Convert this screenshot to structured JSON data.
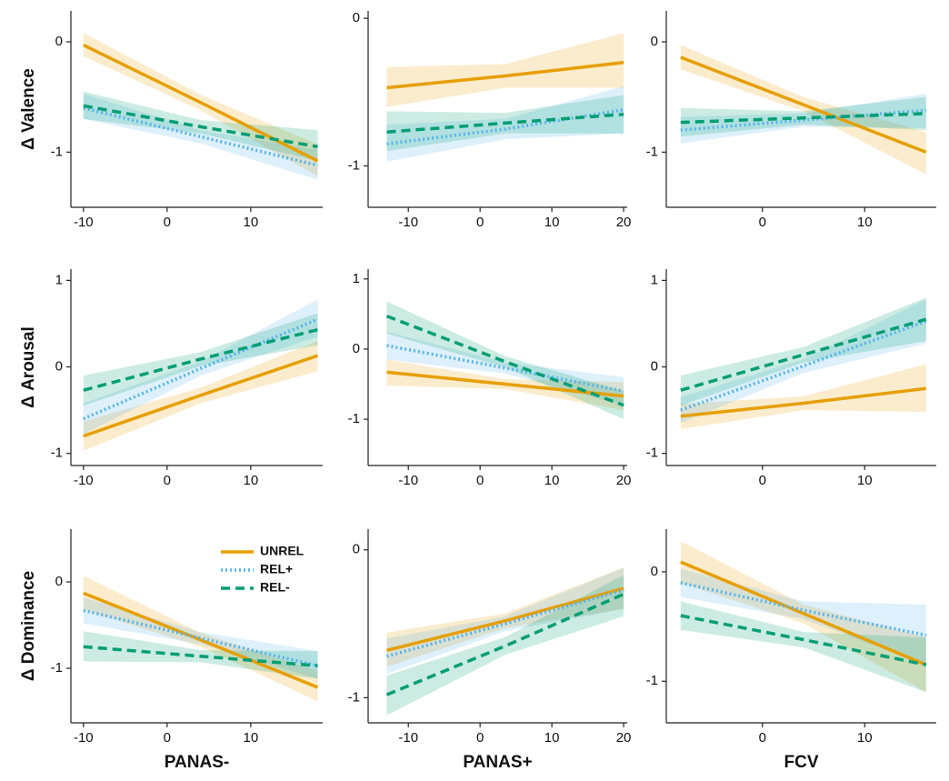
{
  "chart_data": [
    {
      "type": "line",
      "ylabel": "Δ Valence",
      "x": [
        -10,
        4,
        18
      ],
      "xlim": [
        -11.5,
        18.6
      ],
      "xticks": [
        -10,
        0,
        10
      ],
      "ylim": [
        -1.5,
        0.28
      ],
      "yticks": [
        -1,
        0
      ],
      "series": [
        {
          "color": "#e69f00",
          "dash": "solid",
          "values": [
            -0.03,
            -0.55,
            -1.08
          ],
          "lower": [
            -0.13,
            -0.62,
            -1.22
          ],
          "upper": [
            0.08,
            -0.48,
            -0.93
          ]
        },
        {
          "color": "#56b4e9",
          "dash": "dotted",
          "values": [
            -0.6,
            -0.86,
            -1.12
          ],
          "lower": [
            -0.7,
            -0.92,
            -1.25
          ],
          "upper": [
            -0.47,
            -0.8,
            -0.98
          ]
        },
        {
          "color": "#009e73",
          "dash": "dashed",
          "values": [
            -0.58,
            -0.77,
            -0.95
          ],
          "lower": [
            -0.7,
            -0.83,
            -1.08
          ],
          "upper": [
            -0.45,
            -0.71,
            -0.8
          ]
        }
      ]
    },
    {
      "type": "line",
      "x": [
        -13,
        3.5,
        20
      ],
      "xlim": [
        -15.6,
        20.5
      ],
      "xticks": [
        -10,
        0,
        10,
        20
      ],
      "ylim": [
        -1.28,
        0.05
      ],
      "yticks": [
        -1,
        0
      ],
      "series": [
        {
          "color": "#e69f00",
          "dash": "solid",
          "values": [
            -0.47,
            -0.39,
            -0.3
          ],
          "lower": [
            -0.6,
            -0.47,
            -0.47
          ],
          "upper": [
            -0.33,
            -0.31,
            -0.1
          ]
        },
        {
          "color": "#56b4e9",
          "dash": "dotted",
          "values": [
            -0.85,
            -0.75,
            -0.62
          ],
          "lower": [
            -0.97,
            -0.82,
            -0.78
          ],
          "upper": [
            -0.72,
            -0.68,
            -0.46
          ]
        },
        {
          "color": "#009e73",
          "dash": "dashed",
          "values": [
            -0.77,
            -0.71,
            -0.65
          ],
          "lower": [
            -0.9,
            -0.78,
            -0.78
          ],
          "upper": [
            -0.63,
            -0.64,
            -0.52
          ]
        }
      ]
    },
    {
      "type": "line",
      "x": [
        -8,
        4,
        16
      ],
      "xlim": [
        -9.4,
        17
      ],
      "xticks": [
        0,
        10
      ],
      "ylim": [
        -1.5,
        0.28
      ],
      "yticks": [
        -1,
        0
      ],
      "series": [
        {
          "color": "#e69f00",
          "dash": "solid",
          "values": [
            -0.14,
            -0.57,
            -1.0
          ],
          "lower": [
            -0.25,
            -0.63,
            -1.2
          ],
          "upper": [
            -0.03,
            -0.5,
            -0.82
          ]
        },
        {
          "color": "#56b4e9",
          "dash": "dotted",
          "values": [
            -0.8,
            -0.71,
            -0.62
          ],
          "lower": [
            -0.92,
            -0.77,
            -0.78
          ],
          "upper": [
            -0.68,
            -0.65,
            -0.47
          ]
        },
        {
          "color": "#009e73",
          "dash": "dashed",
          "values": [
            -0.73,
            -0.69,
            -0.65
          ],
          "lower": [
            -0.86,
            -0.75,
            -0.8
          ],
          "upper": [
            -0.6,
            -0.63,
            -0.5
          ]
        }
      ]
    },
    {
      "type": "line",
      "ylabel": "Δ Arousal",
      "x": [
        -10,
        4,
        18
      ],
      "xlim": [
        -11.5,
        18.6
      ],
      "xticks": [
        -10,
        0,
        10
      ],
      "ylim": [
        -1.14,
        1.13
      ],
      "yticks": [
        -1,
        0,
        1
      ],
      "series": [
        {
          "color": "#e69f00",
          "dash": "solid",
          "values": [
            -0.8,
            -0.33,
            0.13
          ],
          "lower": [
            -0.97,
            -0.42,
            -0.05
          ],
          "upper": [
            -0.63,
            -0.24,
            0.3
          ]
        },
        {
          "color": "#56b4e9",
          "dash": "dotted",
          "values": [
            -0.6,
            -0.02,
            0.55
          ],
          "lower": [
            -0.78,
            -0.1,
            0.35
          ],
          "upper": [
            -0.42,
            0.06,
            0.78
          ]
        },
        {
          "color": "#009e73",
          "dash": "dashed",
          "values": [
            -0.27,
            0.09,
            0.43
          ],
          "lower": [
            -0.45,
            0.01,
            0.25
          ],
          "upper": [
            -0.1,
            0.17,
            0.62
          ]
        }
      ]
    },
    {
      "type": "line",
      "x": [
        -13,
        3.5,
        20
      ],
      "xlim": [
        -15.6,
        20.5
      ],
      "xticks": [
        -10,
        0,
        10,
        20
      ],
      "ylim": [
        -1.66,
        1.14
      ],
      "yticks": [
        -1,
        0,
        1
      ],
      "series": [
        {
          "color": "#e69f00",
          "dash": "solid",
          "values": [
            -0.33,
            -0.5,
            -0.67
          ],
          "lower": [
            -0.52,
            -0.57,
            -0.87
          ],
          "upper": [
            -0.15,
            -0.43,
            -0.47
          ]
        },
        {
          "color": "#56b4e9",
          "dash": "dotted",
          "values": [
            0.05,
            -0.27,
            -0.6
          ],
          "lower": [
            -0.15,
            -0.35,
            -0.8
          ],
          "upper": [
            0.25,
            -0.19,
            -0.4
          ]
        },
        {
          "color": "#009e73",
          "dash": "dashed",
          "values": [
            0.47,
            -0.18,
            -0.8
          ],
          "lower": [
            0.22,
            -0.26,
            -1.0
          ],
          "upper": [
            0.68,
            -0.1,
            -0.6
          ]
        }
      ]
    },
    {
      "type": "line",
      "x": [
        -8,
        4,
        16
      ],
      "xlim": [
        -9.4,
        17
      ],
      "xticks": [
        0,
        10
      ],
      "ylim": [
        -1.14,
        1.13
      ],
      "yticks": [
        -1,
        0,
        1
      ],
      "series": [
        {
          "color": "#e69f00",
          "dash": "solid",
          "values": [
            -0.57,
            -0.42,
            -0.25
          ],
          "lower": [
            -0.72,
            -0.5,
            -0.52
          ],
          "upper": [
            -0.43,
            -0.34,
            0.03
          ]
        },
        {
          "color": "#56b4e9",
          "dash": "dotted",
          "values": [
            -0.5,
            0.01,
            0.53
          ],
          "lower": [
            -0.65,
            -0.07,
            0.27
          ],
          "upper": [
            -0.35,
            0.09,
            0.78
          ]
        },
        {
          "color": "#009e73",
          "dash": "dashed",
          "values": [
            -0.27,
            0.14,
            0.55
          ],
          "lower": [
            -0.45,
            0.05,
            0.3
          ],
          "upper": [
            -0.1,
            0.23,
            0.8
          ]
        }
      ]
    },
    {
      "type": "line",
      "ylabel": "Δ Dominance",
      "xlabel": "PANAS-",
      "legend": "upper right",
      "x": [
        -10,
        4,
        18
      ],
      "xlim": [
        -11.5,
        18.6
      ],
      "xticks": [
        -10,
        0,
        10
      ],
      "ylim": [
        -1.63,
        0.61
      ],
      "yticks": [
        -1,
        0
      ],
      "series": [
        {
          "name": "UNREL",
          "color": "#e69f00",
          "dash": "solid",
          "values": [
            -0.13,
            -0.67,
            -1.22
          ],
          "lower": [
            -0.32,
            -0.75,
            -1.38
          ],
          "upper": [
            0.07,
            -0.59,
            -1.03
          ]
        },
        {
          "name": "REL+",
          "color": "#56b4e9",
          "dash": "dotted",
          "values": [
            -0.33,
            -0.65,
            -0.97
          ],
          "lower": [
            -0.48,
            -0.72,
            -1.12
          ],
          "upper": [
            -0.18,
            -0.58,
            -0.8
          ]
        },
        {
          "name": "REL-",
          "color": "#009e73",
          "dash": "dashed",
          "values": [
            -0.75,
            -0.86,
            -0.97
          ],
          "lower": [
            -0.92,
            -0.93,
            -1.12
          ],
          "upper": [
            -0.57,
            -0.79,
            -0.8
          ]
        }
      ]
    },
    {
      "type": "line",
      "xlabel": "PANAS+",
      "x": [
        -13,
        3.5,
        20
      ],
      "xlim": [
        -15.6,
        20.5
      ],
      "xticks": [
        -10,
        0,
        10,
        20
      ],
      "ylim": [
        -1.17,
        0.14
      ],
      "yticks": [
        -1,
        0
      ],
      "series": [
        {
          "color": "#e69f00",
          "dash": "solid",
          "values": [
            -0.68,
            -0.48,
            -0.26
          ],
          "lower": [
            -0.79,
            -0.53,
            -0.4
          ],
          "upper": [
            -0.56,
            -0.43,
            -0.12
          ]
        },
        {
          "color": "#56b4e9",
          "dash": "dotted",
          "values": [
            -0.72,
            -0.5,
            -0.27
          ],
          "lower": [
            -0.84,
            -0.55,
            -0.4
          ],
          "upper": [
            -0.6,
            -0.45,
            -0.12
          ]
        },
        {
          "color": "#009e73",
          "dash": "dashed",
          "values": [
            -0.98,
            -0.65,
            -0.3
          ],
          "lower": [
            -1.12,
            -0.71,
            -0.45
          ],
          "upper": [
            -0.85,
            -0.59,
            -0.17
          ]
        }
      ]
    },
    {
      "type": "line",
      "xlabel": "FCV",
      "x": [
        -8,
        4,
        16
      ],
      "xlim": [
        -9.4,
        17
      ],
      "xticks": [
        0,
        10
      ],
      "ylim": [
        -1.38,
        0.39
      ],
      "yticks": [
        -1,
        0
      ],
      "series": [
        {
          "color": "#e69f00",
          "dash": "solid",
          "values": [
            0.09,
            -0.38,
            -0.85
          ],
          "lower": [
            -0.1,
            -0.47,
            -1.1
          ],
          "upper": [
            0.28,
            -0.3,
            -0.6
          ]
        },
        {
          "color": "#56b4e9",
          "dash": "dotted",
          "values": [
            -0.1,
            -0.35,
            -0.58
          ],
          "lower": [
            -0.23,
            -0.43,
            -0.85
          ],
          "upper": [
            0.03,
            -0.27,
            -0.3
          ]
        },
        {
          "color": "#009e73",
          "dash": "dashed",
          "values": [
            -0.4,
            -0.62,
            -0.85
          ],
          "lower": [
            -0.53,
            -0.69,
            -1.1
          ],
          "upper": [
            -0.27,
            -0.55,
            -0.6
          ]
        }
      ]
    }
  ]
}
